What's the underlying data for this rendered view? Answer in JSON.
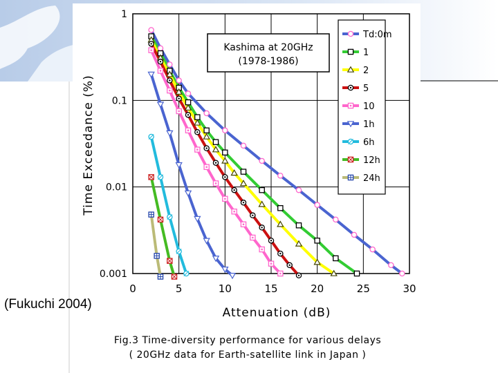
{
  "slide": {
    "credit": "(Fukuchi 2004)"
  },
  "chart_data": {
    "type": "line",
    "yscale": "log",
    "title": "Kashima at 20GHz",
    "subtitle": "(1978-1986)",
    "xlabel": "Attenuation (dB)",
    "ylabel": "Time Exceedance (%)",
    "xlim": [
      0,
      30
    ],
    "ylim": [
      0.001,
      1
    ],
    "xticks": [
      "0",
      "5",
      "10",
      "15",
      "20",
      "25",
      "30"
    ],
    "yticks": [
      "0.001",
      "0.01",
      "0.1",
      "1"
    ],
    "grid": true,
    "legend_position": "right, inside",
    "caption_line1": "Fig.3 Time-diversity performance for various delays",
    "caption_line2": "( 20GHz data for Earth-satellite link in Japan )",
    "series": [
      {
        "name": "Td:0m",
        "color": "#4a64d0",
        "marker": "circle",
        "marker_color": "#ff66cc",
        "x": [
          2,
          3,
          4,
          5,
          6,
          8,
          10,
          12,
          14,
          16,
          18,
          20,
          22,
          24,
          26,
          28,
          29.2
        ],
        "y": [
          0.65,
          0.4,
          0.26,
          0.17,
          0.12,
          0.071,
          0.045,
          0.03,
          0.02,
          0.0135,
          0.0092,
          0.0062,
          0.0042,
          0.0028,
          0.0019,
          0.00125,
          0.001
        ]
      },
      {
        "name": "1",
        "color": "#33cc33",
        "marker": "square",
        "marker_color": "#000000",
        "x": [
          2,
          3,
          4,
          5,
          6,
          7,
          8,
          9,
          10,
          12,
          14,
          16,
          18,
          20,
          22,
          24.3
        ],
        "y": [
          0.55,
          0.35,
          0.22,
          0.14,
          0.095,
          0.064,
          0.045,
          0.033,
          0.025,
          0.015,
          0.0092,
          0.0057,
          0.0036,
          0.0024,
          0.0015,
          0.001
        ]
      },
      {
        "name": "2",
        "color": "#ffff00",
        "marker": "triangle",
        "marker_color": "#444400",
        "x": [
          2,
          3,
          4,
          5,
          6,
          7,
          8,
          9,
          10,
          11,
          12,
          14,
          16,
          18,
          20,
          21.8
        ],
        "y": [
          0.5,
          0.31,
          0.2,
          0.125,
          0.082,
          0.055,
          0.038,
          0.027,
          0.02,
          0.0145,
          0.011,
          0.0063,
          0.0037,
          0.0022,
          0.00135,
          0.001
        ]
      },
      {
        "name": "5",
        "color": "#cc1111",
        "marker": "dotted-circle",
        "marker_color": "#000000",
        "x": [
          2,
          3,
          4,
          5,
          6,
          7,
          8,
          9,
          10,
          11,
          12,
          13,
          14,
          15,
          16,
          17,
          18
        ],
        "y": [
          0.45,
          0.28,
          0.17,
          0.105,
          0.068,
          0.043,
          0.028,
          0.019,
          0.013,
          0.0092,
          0.0066,
          0.0047,
          0.0034,
          0.0024,
          0.0017,
          0.00125,
          0.00095
        ]
      },
      {
        "name": "10",
        "color": "#ff66cc",
        "marker": "dotted-square",
        "marker_color": "#ff66cc",
        "x": [
          2,
          3,
          4,
          5,
          6,
          7,
          8,
          9,
          10,
          11,
          12,
          13,
          14,
          15,
          16
        ],
        "y": [
          0.38,
          0.22,
          0.13,
          0.075,
          0.045,
          0.027,
          0.017,
          0.011,
          0.0073,
          0.0052,
          0.0037,
          0.0026,
          0.0019,
          0.0013,
          0.001
        ]
      },
      {
        "name": "1h",
        "color": "#4a64d0",
        "marker": "inverted-triangle",
        "marker_color": "#4a64d0",
        "x": [
          2,
          3,
          4,
          5,
          6,
          7,
          8,
          9,
          10,
          10.8
        ],
        "y": [
          0.2,
          0.09,
          0.042,
          0.018,
          0.0085,
          0.0043,
          0.0024,
          0.0015,
          0.00112,
          0.00095
        ]
      },
      {
        "name": "6h",
        "color": "#22bbdd",
        "marker": "crossed-circle",
        "marker_color": "#22bbdd",
        "x": [
          2,
          3,
          4,
          5,
          5.8
        ],
        "y": [
          0.038,
          0.013,
          0.0045,
          0.0018,
          0.001
        ]
      },
      {
        "name": "12h",
        "color": "#44bb22",
        "marker": "crossed-square",
        "marker_color": "#cc2222",
        "x": [
          2,
          3,
          4,
          4.5
        ],
        "y": [
          0.013,
          0.0042,
          0.0014,
          0.00092
        ]
      },
      {
        "name": "24h",
        "color": "#bbbb77",
        "marker": "plus-square",
        "marker_color": "#2244aa",
        "x": [
          2,
          2.6,
          3.0
        ],
        "y": [
          0.0048,
          0.0016,
          0.00092
        ]
      }
    ]
  }
}
